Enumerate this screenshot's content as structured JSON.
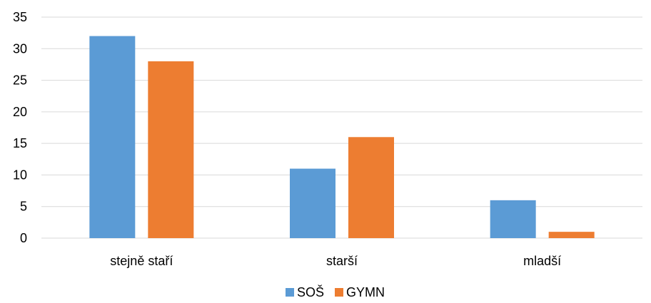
{
  "chart_data": {
    "type": "bar",
    "categories": [
      "stejně staří",
      "starší",
      "mladší"
    ],
    "series": [
      {
        "name": "SOŠ",
        "values": [
          32,
          11,
          6
        ],
        "color": "#5B9BD5"
      },
      {
        "name": "GYMN",
        "values": [
          28,
          16,
          1
        ],
        "color": "#ED7D31"
      }
    ],
    "ylim": [
      0,
      35
    ],
    "yticks": [
      0,
      5,
      10,
      15,
      20,
      25,
      30,
      35
    ],
    "grid": true,
    "grid_color": "#D9D9D9",
    "legend_position": "bottom"
  }
}
